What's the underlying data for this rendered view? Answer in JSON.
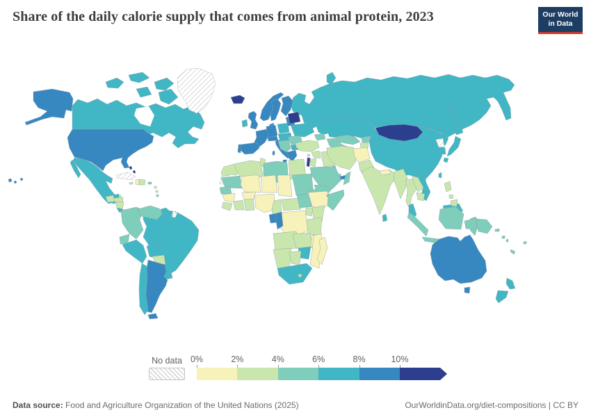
{
  "header": {
    "title": "Share of the daily calorie supply that comes from animal protein, 2023",
    "logo_line1": "Our World",
    "logo_line2": "in Data",
    "logo_bg": "#1d3d63",
    "logo_accent": "#d0392b"
  },
  "legend": {
    "no_data_label": "No data",
    "tick_labels": [
      "0%",
      "2%",
      "4%",
      "6%",
      "8%",
      "10%"
    ],
    "bins": [
      "0-2%",
      "2-4%",
      "4-6%",
      "6-8%",
      "8-10%",
      "10%+"
    ],
    "bucket_colors": {
      "0-2%": "#f6f2ba",
      "2-4%": "#c9e7ad",
      "4-6%": "#7fcdbb",
      "6-8%": "#41b6c4",
      "8-10%": "#3787c0",
      "10%+": "#2c3e8e"
    }
  },
  "footer": {
    "source_label": "Data source:",
    "source_text": " Food and Agriculture Organization of the United Nations (2025)",
    "link_text": "OurWorldinData.org/diet-compositions | CC BY"
  },
  "chart_data": {
    "type": "choropleth",
    "title": "Share of the daily calorie supply that comes from animal protein, 2023",
    "year": 2023,
    "unit": "% of daily calorie supply",
    "bins": [
      "0-2%",
      "2-4%",
      "4-6%",
      "6-8%",
      "8-10%",
      "10%+"
    ],
    "no_data_label": "No data",
    "countries": {
      "Canada": "6-8%",
      "United States": "8-10%",
      "Greenland": "No data",
      "Iceland": "10%+",
      "Mexico": "6-8%",
      "Belize": "2-4%",
      "Guatemala": "2-4%",
      "Honduras": "2-4%",
      "Nicaragua": "2-4%",
      "Costa Rica": "6-8%",
      "Panama": "6-8%",
      "Cuba": "No data",
      "Jamaica": "2-4%",
      "Haiti": "0-2%",
      "Dominican Republic": "2-4%",
      "Puerto Rico": "4-6%",
      "Bahamas": "10%+",
      "Lesser Antilles": "2-4%",
      "Trinidad and Tobago": "4-6%",
      "Colombia": "4-6%",
      "Venezuela": "4-6%",
      "Guyana": "6-8%",
      "Suriname": "6-8%",
      "French Guiana": "No data",
      "Ecuador": "4-6%",
      "Peru": "6-8%",
      "Brazil": "6-8%",
      "Bolivia": "6-8%",
      "Paraguay": "2-4%",
      "Uruguay": "6-8%",
      "Argentina": "8-10%",
      "Chile": "6-8%",
      "United Kingdom": "8-10%",
      "Ireland": "6-8%",
      "Norway": "8-10%",
      "Sweden": "8-10%",
      "Finland": "8-10%",
      "Denmark": "8-10%",
      "Germany": "8-10%",
      "France": "8-10%",
      "Spain": "8-10%",
      "Portugal": "8-10%",
      "Italy": "8-10%",
      "Austria": "8-10%",
      "Poland": "6-8%",
      "Hungary": "6-8%",
      "Baltic states": "8-10%",
      "Belarus": "10%+",
      "Ukraine": "6-8%",
      "Romania": "4-6%",
      "Bulgaria": "6-8%",
      "Balkans": "4-6%",
      "Greece": "8-10%",
      "Russia": "6-8%",
      "Kazakhstan": "6-8%",
      "Uzbekistan": "4-6%",
      "Turkmenistan": "4-6%",
      "Kyrgyzstan": "4-6%",
      "Tajikistan": "2-4%",
      "Caucasus": "4-6%",
      "Turkey": "2-4%",
      "Cyprus": "2-4%",
      "Syria": "2-4%",
      "Israel": "10%+",
      "Jordan": "2-4%",
      "Iraq": "2-4%",
      "Kuwait": "4-6%",
      "Qatar": "4-6%",
      "Saudi Arabia": "4-6%",
      "United Arab Emirates": "8-10%",
      "Oman": "4-6%",
      "Yemen": "4-6%",
      "Iran": "2-4%",
      "Afghanistan": "0-2%",
      "Pakistan": "2-4%",
      "India": "2-4%",
      "Nepal": "0-2%",
      "Bangladesh": "2-4%",
      "Sri Lanka": "6-8%",
      "China": "6-8%",
      "Mongolia": "10%+",
      "North Korea": "No data",
      "South Korea": "6-8%",
      "Japan": "6-8%",
      "Taiwan": "6-8%",
      "Myanmar": "2-4%",
      "Thailand": "2-4%",
      "Laos": "2-4%",
      "Cambodia": "2-4%",
      "Vietnam": "6-8%",
      "Malaysia": "6-8%",
      "Indonesia": "4-6%",
      "Philippines": "2-4%",
      "Papua New Guinea": "4-6%",
      "Solomon Islands": "4-6%",
      "Fiji": "4-6%",
      "New Caledonia": "4-6%",
      "Australia": "8-10%",
      "New Zealand": "6-8%",
      "Morocco": "2-4%",
      "Western Sahara": "No data",
      "Algeria": "2-4%",
      "Tunisia": "2-4%",
      "Libya": "4-6%",
      "Egypt": "2-4%",
      "Mauritania": "4-6%",
      "Senegal": "4-6%",
      "Mali": "0-2%",
      "Burkina Faso": "0-2%",
      "Niger": "0-2%",
      "Chad": "0-2%",
      "Sudan": "4-6%",
      "Eritrea": "4-6%",
      "Djibouti": "4-6%",
      "Guinea": "0-2%",
      "Liberia": "2-4%",
      "Côte d'Ivoire": "2-4%",
      "Ghana": "2-4%",
      "Nigeria": "0-2%",
      "Cameroon": "2-4%",
      "Central African Republic": "2-4%",
      "South Sudan": "4-6%",
      "Ethiopia": "0-2%",
      "Somalia": "4-6%",
      "Kenya": "2-4%",
      "Uganda": "2-4%",
      "DR Congo": "0-2%",
      "Gabon": "8-10%",
      "Republic of the Congo": "8-10%",
      "Tanzania": "2-4%",
      "Angola": "2-4%",
      "Zambia": "2-4%",
      "Malawi": "0-2%",
      "Mozambique": "0-2%",
      "Zimbabwe": "6-8%",
      "Namibia": "2-4%",
      "Botswana": "2-4%",
      "South Africa": "6-8%",
      "Lesotho": "2-4%",
      "Madagascar": "0-2%"
    }
  }
}
